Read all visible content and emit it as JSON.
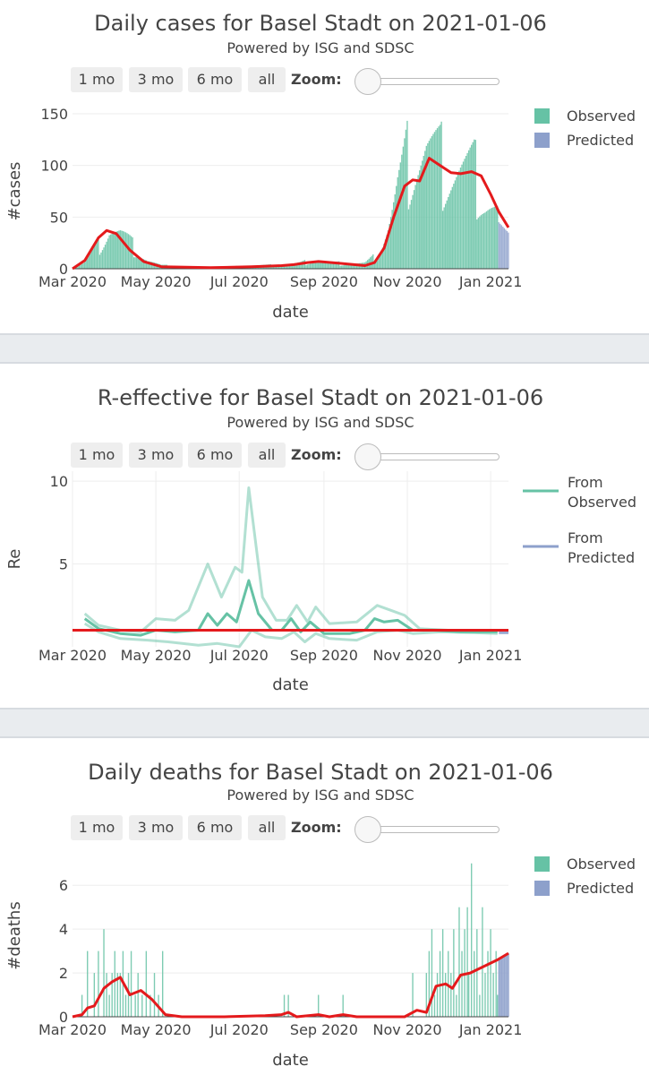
{
  "colors": {
    "observed": "#66c2a5",
    "predicted": "#8da0cb",
    "trend": "#e41a1c",
    "grid": "#eeeeee",
    "text": "#444444"
  },
  "controls": {
    "buttons": [
      "1 mo",
      "3 mo",
      "6 mo",
      "all"
    ],
    "zoom_label": "Zoom:"
  },
  "panels": [
    {
      "title": "Daily cases for Basel Stadt on 2021-01-06",
      "subtitle": "Powered by ISG and SDSC"
    },
    {
      "title": "R-effective for Basel Stadt on 2021-01-06",
      "subtitle": "Powered by ISG and SDSC"
    },
    {
      "title": "Daily deaths for Basel Stadt on 2021-01-06",
      "subtitle": "Powered by ISG and SDSC"
    }
  ],
  "chart_data": [
    {
      "type": "bar",
      "x_range": [
        "2020-03-01",
        "2021-01-14"
      ],
      "ylim": [
        0,
        150
      ],
      "yticks": [
        0,
        50,
        100,
        150
      ],
      "xticks": [
        "Mar 2020",
        "May 2020",
        "Jul 2020",
        "Sep 2020",
        "Nov 2020",
        "Jan 2021"
      ],
      "xlabel": "date",
      "ylabel": "#cases",
      "legend": [
        "Observed",
        "Predicted"
      ],
      "legend_position": "top-right",
      "observed_anchors": [
        [
          "2020-03-01",
          0
        ],
        [
          "2020-03-10",
          6
        ],
        [
          "2020-03-20",
          22
        ],
        [
          "2020-03-28",
          40
        ],
        [
          "2020-04-05",
          34
        ],
        [
          "2020-04-15",
          20
        ],
        [
          "2020-04-25",
          8
        ],
        [
          "2020-05-05",
          3
        ],
        [
          "2020-05-20",
          2
        ],
        [
          "2020-06-10",
          1
        ],
        [
          "2020-07-01",
          2
        ],
        [
          "2020-07-15",
          3
        ],
        [
          "2020-08-01",
          3
        ],
        [
          "2020-08-15",
          5
        ],
        [
          "2020-08-25",
          8
        ],
        [
          "2020-09-10",
          5
        ],
        [
          "2020-10-01",
          5
        ],
        [
          "2020-10-10",
          12
        ],
        [
          "2020-10-18",
          40
        ],
        [
          "2020-10-25",
          75
        ],
        [
          "2020-11-01",
          100
        ],
        [
          "2020-11-08",
          110
        ],
        [
          "2020-11-15",
          115
        ],
        [
          "2020-11-25",
          100
        ],
        [
          "2020-12-10",
          95
        ],
        [
          "2020-12-20",
          90
        ],
        [
          "2020-12-28",
          70
        ],
        [
          "2021-01-06",
          55
        ]
      ],
      "predicted_anchors": [
        [
          "2021-01-07",
          45
        ],
        [
          "2021-01-14",
          35
        ]
      ],
      "trend": [
        [
          "2020-03-01",
          0
        ],
        [
          "2020-03-10",
          8
        ],
        [
          "2020-03-20",
          30
        ],
        [
          "2020-03-26",
          37
        ],
        [
          "2020-04-02",
          34
        ],
        [
          "2020-04-12",
          18
        ],
        [
          "2020-04-22",
          7
        ],
        [
          "2020-05-05",
          2
        ],
        [
          "2020-06-10",
          1
        ],
        [
          "2020-07-10",
          2
        ],
        [
          "2020-08-01",
          3
        ],
        [
          "2020-08-10",
          4
        ],
        [
          "2020-08-20",
          6
        ],
        [
          "2020-08-28",
          7
        ],
        [
          "2020-09-15",
          5
        ],
        [
          "2020-10-01",
          3
        ],
        [
          "2020-10-08",
          6
        ],
        [
          "2020-10-15",
          20
        ],
        [
          "2020-10-22",
          50
        ],
        [
          "2020-10-30",
          80
        ],
        [
          "2020-11-05",
          86
        ],
        [
          "2020-11-10",
          85
        ],
        [
          "2020-11-17",
          107
        ],
        [
          "2020-11-25",
          100
        ],
        [
          "2020-12-03",
          93
        ],
        [
          "2020-12-10",
          92
        ],
        [
          "2020-12-18",
          94
        ],
        [
          "2020-12-25",
          90
        ],
        [
          "2021-01-01",
          72
        ],
        [
          "2021-01-07",
          55
        ],
        [
          "2021-01-14",
          40
        ]
      ]
    },
    {
      "type": "line",
      "x_range": [
        "2020-03-01",
        "2021-01-14"
      ],
      "ylim": [
        0,
        10.6
      ],
      "yticks": [
        5,
        10
      ],
      "xticks": [
        "Mar 2020",
        "May 2020",
        "Jul 2020",
        "Sep 2020",
        "Nov 2020",
        "Jan 2021"
      ],
      "xlabel": "date",
      "ylabel": "Re",
      "legend": [
        "From Observed",
        "From Predicted"
      ],
      "legend_position": "top-right",
      "reference_line": 1,
      "series": [
        {
          "role": "median",
          "points": [
            [
              "2020-03-10",
              1.7
            ],
            [
              "2020-03-20",
              1.1
            ],
            [
              "2020-04-05",
              0.8
            ],
            [
              "2020-04-20",
              0.7
            ],
            [
              "2020-05-01",
              1.0
            ],
            [
              "2020-05-15",
              0.9
            ],
            [
              "2020-06-01",
              1.0
            ],
            [
              "2020-06-08",
              2.0
            ],
            [
              "2020-06-15",
              1.3
            ],
            [
              "2020-06-22",
              2.0
            ],
            [
              "2020-06-29",
              1.5
            ],
            [
              "2020-07-08",
              4.0
            ],
            [
              "2020-07-15",
              2.0
            ],
            [
              "2020-07-25",
              1.0
            ],
            [
              "2020-08-01",
              1.0
            ],
            [
              "2020-08-08",
              1.7
            ],
            [
              "2020-08-15",
              0.9
            ],
            [
              "2020-08-22",
              1.5
            ],
            [
              "2020-09-01",
              0.8
            ],
            [
              "2020-09-20",
              0.8
            ],
            [
              "2020-10-01",
              1.0
            ],
            [
              "2020-10-08",
              1.7
            ],
            [
              "2020-10-15",
              1.5
            ],
            [
              "2020-10-25",
              1.6
            ],
            [
              "2020-11-05",
              1.0
            ],
            [
              "2020-11-20",
              1.0
            ],
            [
              "2020-12-10",
              0.9
            ],
            [
              "2021-01-06",
              0.9
            ]
          ]
        },
        {
          "role": "upper",
          "points": [
            [
              "2020-03-10",
              2.0
            ],
            [
              "2020-03-20",
              1.3
            ],
            [
              "2020-04-05",
              1.0
            ],
            [
              "2020-04-20",
              0.9
            ],
            [
              "2020-05-01",
              1.7
            ],
            [
              "2020-05-15",
              1.6
            ],
            [
              "2020-05-25",
              2.2
            ],
            [
              "2020-06-08",
              5.0
            ],
            [
              "2020-06-18",
              3.0
            ],
            [
              "2020-06-28",
              4.8
            ],
            [
              "2020-07-03",
              4.5
            ],
            [
              "2020-07-08",
              9.6
            ],
            [
              "2020-07-18",
              3.0
            ],
            [
              "2020-07-28",
              1.6
            ],
            [
              "2020-08-05",
              1.6
            ],
            [
              "2020-08-12",
              2.5
            ],
            [
              "2020-08-20",
              1.5
            ],
            [
              "2020-08-26",
              2.4
            ],
            [
              "2020-09-05",
              1.4
            ],
            [
              "2020-09-25",
              1.5
            ],
            [
              "2020-10-10",
              2.5
            ],
            [
              "2020-10-20",
              2.2
            ],
            [
              "2020-10-30",
              1.9
            ],
            [
              "2020-11-10",
              1.1
            ],
            [
              "2020-12-01",
              1.0
            ],
            [
              "2020-12-20",
              1.0
            ],
            [
              "2021-01-06",
              1.0
            ]
          ]
        },
        {
          "role": "lower",
          "points": [
            [
              "2020-03-10",
              1.4
            ],
            [
              "2020-03-20",
              0.9
            ],
            [
              "2020-04-05",
              0.5
            ],
            [
              "2020-04-25",
              0.4
            ],
            [
              "2020-05-10",
              0.3
            ],
            [
              "2020-06-01",
              0.1
            ],
            [
              "2020-06-15",
              0.2
            ],
            [
              "2020-07-01",
              0.0
            ],
            [
              "2020-07-10",
              1.0
            ],
            [
              "2020-07-20",
              0.6
            ],
            [
              "2020-08-01",
              0.5
            ],
            [
              "2020-08-10",
              0.9
            ],
            [
              "2020-08-18",
              0.3
            ],
            [
              "2020-08-26",
              0.8
            ],
            [
              "2020-09-05",
              0.5
            ],
            [
              "2020-09-25",
              0.4
            ],
            [
              "2020-10-10",
              0.9
            ],
            [
              "2020-10-25",
              1.0
            ],
            [
              "2020-11-05",
              0.8
            ],
            [
              "2020-11-25",
              0.9
            ],
            [
              "2020-12-20",
              0.85
            ],
            [
              "2021-01-06",
              0.8
            ]
          ]
        }
      ],
      "predicted_points": [
        [
          "2021-01-07",
          0.85
        ],
        [
          "2021-01-14",
          0.85
        ]
      ]
    },
    {
      "type": "bar",
      "x_range": [
        "2020-03-01",
        "2021-01-14"
      ],
      "ylim": [
        0,
        7.4
      ],
      "yticks": [
        0,
        2,
        4,
        6
      ],
      "xticks": [
        "Mar 2020",
        "May 2020",
        "Jul 2020",
        "Sep 2020",
        "Nov 2020",
        "Jan 2021"
      ],
      "xlabel": "date",
      "ylabel": "#deaths",
      "legend": [
        "Observed",
        "Predicted"
      ],
      "legend_position": "top-right",
      "observed_bars": [
        [
          "2020-03-08",
          1
        ],
        [
          "2020-03-12",
          3
        ],
        [
          "2020-03-17",
          2
        ],
        [
          "2020-03-20",
          3
        ],
        [
          "2020-03-24",
          4
        ],
        [
          "2020-03-26",
          2
        ],
        [
          "2020-03-28",
          1
        ],
        [
          "2020-03-30",
          2
        ],
        [
          "2020-04-01",
          3
        ],
        [
          "2020-04-03",
          2
        ],
        [
          "2020-04-05",
          2
        ],
        [
          "2020-04-07",
          3
        ],
        [
          "2020-04-09",
          1
        ],
        [
          "2020-04-11",
          2
        ],
        [
          "2020-04-13",
          3
        ],
        [
          "2020-04-16",
          1
        ],
        [
          "2020-04-18",
          2
        ],
        [
          "2020-04-21",
          1
        ],
        [
          "2020-04-24",
          3
        ],
        [
          "2020-04-27",
          1
        ],
        [
          "2020-04-30",
          2
        ],
        [
          "2020-05-03",
          1
        ],
        [
          "2020-05-06",
          3
        ],
        [
          "2020-08-03",
          1
        ],
        [
          "2020-08-06",
          1
        ],
        [
          "2020-08-28",
          1
        ],
        [
          "2020-09-15",
          1
        ],
        [
          "2020-11-05",
          2
        ],
        [
          "2020-11-15",
          2
        ],
        [
          "2020-11-17",
          3
        ],
        [
          "2020-11-19",
          4
        ],
        [
          "2020-11-21",
          1
        ],
        [
          "2020-11-23",
          2
        ],
        [
          "2020-11-25",
          3
        ],
        [
          "2020-11-27",
          4
        ],
        [
          "2020-11-29",
          2
        ],
        [
          "2020-12-01",
          3
        ],
        [
          "2020-12-03",
          2
        ],
        [
          "2020-12-05",
          4
        ],
        [
          "2020-12-07",
          1
        ],
        [
          "2020-12-09",
          5
        ],
        [
          "2020-12-11",
          3
        ],
        [
          "2020-12-13",
          4
        ],
        [
          "2020-12-15",
          5
        ],
        [
          "2020-12-16",
          2
        ],
        [
          "2020-12-18",
          7
        ],
        [
          "2020-12-20",
          3
        ],
        [
          "2020-12-22",
          4
        ],
        [
          "2020-12-24",
          1
        ],
        [
          "2020-12-26",
          5
        ],
        [
          "2020-12-28",
          2
        ],
        [
          "2020-12-30",
          3
        ],
        [
          "2021-01-01",
          4
        ],
        [
          "2021-01-03",
          2
        ],
        [
          "2021-01-05",
          3
        ],
        [
          "2021-01-06",
          1
        ]
      ],
      "predicted_anchors": [
        [
          "2021-01-07",
          2.7
        ],
        [
          "2021-01-14",
          2.9
        ]
      ],
      "trend": [
        [
          "2020-03-01",
          0
        ],
        [
          "2020-03-08",
          0.1
        ],
        [
          "2020-03-12",
          0.4
        ],
        [
          "2020-03-17",
          0.5
        ],
        [
          "2020-03-24",
          1.3
        ],
        [
          "2020-03-30",
          1.6
        ],
        [
          "2020-04-05",
          1.8
        ],
        [
          "2020-04-12",
          1.0
        ],
        [
          "2020-04-20",
          1.2
        ],
        [
          "2020-04-28",
          0.8
        ],
        [
          "2020-05-08",
          0.1
        ],
        [
          "2020-05-20",
          0.0
        ],
        [
          "2020-06-20",
          0.0
        ],
        [
          "2020-07-20",
          0.05
        ],
        [
          "2020-08-01",
          0.1
        ],
        [
          "2020-08-06",
          0.2
        ],
        [
          "2020-08-12",
          0.0
        ],
        [
          "2020-08-28",
          0.1
        ],
        [
          "2020-09-05",
          0.0
        ],
        [
          "2020-09-15",
          0.1
        ],
        [
          "2020-09-25",
          0.0
        ],
        [
          "2020-10-30",
          0.0
        ],
        [
          "2020-11-08",
          0.3
        ],
        [
          "2020-11-15",
          0.2
        ],
        [
          "2020-11-22",
          1.4
        ],
        [
          "2020-11-29",
          1.5
        ],
        [
          "2020-12-04",
          1.3
        ],
        [
          "2020-12-10",
          1.9
        ],
        [
          "2020-12-17",
          2.0
        ],
        [
          "2021-01-06",
          2.6
        ],
        [
          "2021-01-14",
          2.9
        ]
      ]
    }
  ]
}
